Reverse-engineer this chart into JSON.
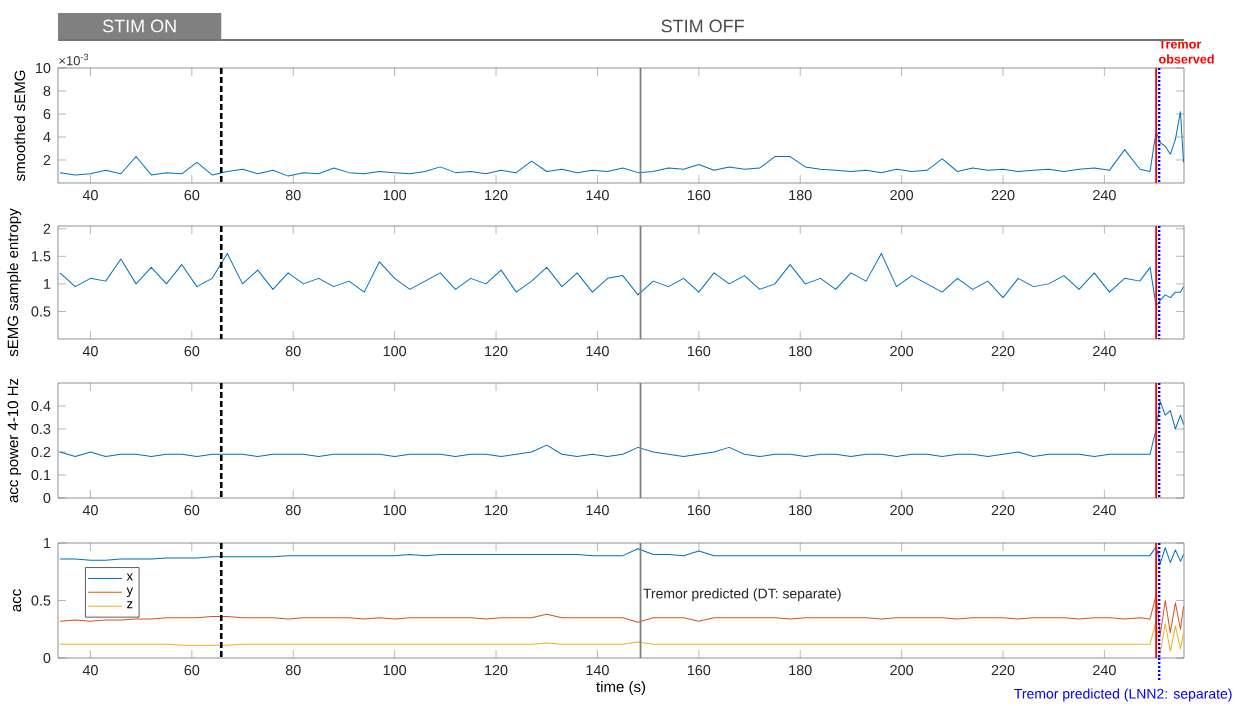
{
  "chart_data": [
    {
      "type": "line",
      "ylabel": "smoothed sEMG",
      "annotations": [
        "×10$^{-3}$",
        "STIM ON",
        "STIM OFF"
      ],
      "x": [
        34,
        37,
        40,
        43,
        46,
        49,
        52,
        55,
        58,
        61,
        64,
        67,
        70,
        73,
        76,
        79,
        82,
        85,
        88,
        91,
        94,
        97,
        100,
        103,
        106,
        109,
        112,
        115,
        118,
        121,
        124,
        127,
        130,
        133,
        136,
        139,
        142,
        145,
        148,
        151,
        154,
        157,
        160,
        163,
        166,
        169,
        172,
        175,
        178,
        181,
        184,
        187,
        190,
        193,
        196,
        199,
        202,
        205,
        208,
        211,
        214,
        217,
        220,
        223,
        226,
        229,
        232,
        235,
        238,
        241,
        244,
        247,
        249,
        250.2,
        251,
        252,
        253,
        254,
        255,
        255.6
      ],
      "series": [
        {
          "color": "#0072bd",
          "values": [
            0.9,
            0.7,
            0.8,
            1.1,
            0.8,
            2.3,
            0.7,
            0.9,
            0.8,
            1.8,
            0.7,
            1.0,
            1.2,
            0.8,
            1.1,
            0.6,
            0.9,
            0.8,
            1.3,
            0.9,
            0.8,
            1.0,
            0.9,
            0.8,
            1.0,
            1.4,
            0.9,
            1.0,
            0.8,
            1.1,
            0.9,
            1.9,
            1.0,
            1.2,
            0.9,
            1.1,
            1.0,
            1.3,
            0.9,
            1.0,
            1.3,
            1.2,
            1.6,
            1.1,
            1.4,
            1.2,
            1.3,
            2.3,
            2.3,
            1.4,
            1.2,
            1.1,
            1.0,
            1.1,
            0.9,
            1.2,
            1.0,
            1.1,
            2.1,
            1.0,
            1.3,
            1.1,
            1.2,
            1.0,
            1.1,
            1.2,
            1.0,
            1.2,
            1.3,
            1.1,
            2.9,
            1.2,
            1.0,
            4.5,
            3.5,
            3.2,
            2.5,
            3.8,
            6.2,
            1.8
          ]
        }
      ],
      "xlim": [
        33.6,
        255.7
      ],
      "ylim": [
        0,
        10
      ],
      "xticks": [
        40,
        60,
        80,
        100,
        120,
        140,
        160,
        180,
        200,
        220,
        240
      ],
      "yticks": [
        2,
        4,
        6,
        8,
        10
      ],
      "ref_lines": [
        {
          "axis": "x",
          "value": 65.8,
          "color": "#000000",
          "line_style": "dashed"
        },
        {
          "axis": "x",
          "value": 148.5,
          "color": "#808080",
          "line_style": "solid"
        },
        {
          "axis": "x",
          "value": 250.2,
          "color": "#ff0000",
          "line_style": "solid",
          "label": "Tremor observed"
        },
        {
          "axis": "x",
          "value": 250.8,
          "color": "#0000ff",
          "line_style": "dotted"
        }
      ]
    },
    {
      "type": "line",
      "ylabel": "sEMG sample entropy",
      "x": [
        34,
        37,
        40,
        43,
        46,
        49,
        52,
        55,
        58,
        61,
        64,
        67,
        70,
        73,
        76,
        79,
        82,
        85,
        88,
        91,
        94,
        97,
        100,
        103,
        106,
        109,
        112,
        115,
        118,
        121,
        124,
        127,
        130,
        133,
        136,
        139,
        142,
        145,
        148,
        151,
        154,
        157,
        160,
        163,
        166,
        169,
        172,
        175,
        178,
        181,
        184,
        187,
        190,
        193,
        196,
        199,
        202,
        205,
        208,
        211,
        214,
        217,
        220,
        223,
        226,
        229,
        232,
        235,
        238,
        241,
        244,
        247,
        249,
        250.2,
        251,
        252,
        253,
        254,
        255,
        255.6
      ],
      "series": [
        {
          "color": "#0072bd",
          "values": [
            1.2,
            0.95,
            1.1,
            1.05,
            1.45,
            1.0,
            1.3,
            1.0,
            1.35,
            0.95,
            1.1,
            1.55,
            1.0,
            1.25,
            0.9,
            1.2,
            1.0,
            1.1,
            0.95,
            1.05,
            0.85,
            1.4,
            1.1,
            0.9,
            1.05,
            1.2,
            0.9,
            1.1,
            1.0,
            1.25,
            0.85,
            1.05,
            1.3,
            0.95,
            1.2,
            0.85,
            1.1,
            1.15,
            0.8,
            1.05,
            0.95,
            1.1,
            0.85,
            1.2,
            1.0,
            1.15,
            0.9,
            1.0,
            1.35,
            1.0,
            1.1,
            0.9,
            1.2,
            1.05,
            1.55,
            0.95,
            1.15,
            1.0,
            0.85,
            1.1,
            0.9,
            1.05,
            0.75,
            1.1,
            0.95,
            1.0,
            1.15,
            0.9,
            1.2,
            0.85,
            1.1,
            1.05,
            1.3,
            0.6,
            0.7,
            0.8,
            0.75,
            0.85,
            0.85,
            0.95
          ]
        }
      ],
      "xlim": [
        33.6,
        255.7
      ],
      "ylim": [
        0,
        2.05
      ],
      "xticks": [
        40,
        60,
        80,
        100,
        120,
        140,
        160,
        180,
        200,
        220,
        240
      ],
      "yticks": [
        0.5,
        1,
        1.5,
        2
      ],
      "ref_lines": [
        {
          "axis": "x",
          "value": 65.8,
          "color": "#000000",
          "line_style": "dashed"
        },
        {
          "axis": "x",
          "value": 148.5,
          "color": "#808080",
          "line_style": "solid"
        },
        {
          "axis": "x",
          "value": 250.2,
          "color": "#ff0000",
          "line_style": "solid"
        },
        {
          "axis": "x",
          "value": 250.8,
          "color": "#0000ff",
          "line_style": "dotted"
        }
      ]
    },
    {
      "type": "line",
      "ylabel": "acc power 4-10 Hz",
      "x": [
        34,
        37,
        40,
        43,
        46,
        49,
        52,
        55,
        58,
        61,
        64,
        67,
        70,
        73,
        76,
        79,
        82,
        85,
        88,
        91,
        94,
        97,
        100,
        103,
        106,
        109,
        112,
        115,
        118,
        121,
        124,
        127,
        130,
        133,
        136,
        139,
        142,
        145,
        148,
        151,
        154,
        157,
        160,
        163,
        166,
        169,
        172,
        175,
        178,
        181,
        184,
        187,
        190,
        193,
        196,
        199,
        202,
        205,
        208,
        211,
        214,
        217,
        220,
        223,
        226,
        229,
        232,
        235,
        238,
        241,
        244,
        247,
        249,
        250.2,
        251,
        252,
        253,
        254,
        255,
        255.6
      ],
      "series": [
        {
          "color": "#0072bd",
          "values": [
            0.2,
            0.18,
            0.2,
            0.18,
            0.19,
            0.19,
            0.18,
            0.19,
            0.19,
            0.18,
            0.19,
            0.19,
            0.19,
            0.18,
            0.19,
            0.19,
            0.19,
            0.18,
            0.19,
            0.19,
            0.19,
            0.19,
            0.18,
            0.19,
            0.19,
            0.19,
            0.18,
            0.19,
            0.19,
            0.18,
            0.19,
            0.2,
            0.23,
            0.19,
            0.18,
            0.19,
            0.18,
            0.19,
            0.22,
            0.2,
            0.19,
            0.18,
            0.19,
            0.2,
            0.22,
            0.19,
            0.18,
            0.19,
            0.19,
            0.18,
            0.19,
            0.19,
            0.18,
            0.19,
            0.19,
            0.18,
            0.19,
            0.19,
            0.18,
            0.19,
            0.19,
            0.18,
            0.19,
            0.2,
            0.18,
            0.19,
            0.19,
            0.19,
            0.18,
            0.19,
            0.19,
            0.19,
            0.19,
            0.3,
            0.42,
            0.36,
            0.38,
            0.3,
            0.36,
            0.32
          ]
        }
      ],
      "xlim": [
        33.6,
        255.7
      ],
      "ylim": [
        0,
        0.5
      ],
      "xticks": [
        40,
        60,
        80,
        100,
        120,
        140,
        160,
        180,
        200,
        220,
        240
      ],
      "yticks": [
        0,
        0.1,
        0.2,
        0.3,
        0.4
      ],
      "ref_lines": [
        {
          "axis": "x",
          "value": 65.8,
          "color": "#000000",
          "line_style": "dashed"
        },
        {
          "axis": "x",
          "value": 148.5,
          "color": "#808080",
          "line_style": "solid"
        },
        {
          "axis": "x",
          "value": 250.2,
          "color": "#ff0000",
          "line_style": "solid"
        },
        {
          "axis": "x",
          "value": 250.8,
          "color": "#0000ff",
          "line_style": "dotted"
        }
      ]
    },
    {
      "type": "line",
      "ylabel": "acc",
      "xlabel": "time (s)",
      "legend": "top left",
      "x": [
        34,
        37,
        40,
        43,
        46,
        49,
        52,
        55,
        58,
        61,
        64,
        67,
        70,
        73,
        76,
        79,
        82,
        85,
        88,
        91,
        94,
        97,
        100,
        103,
        106,
        109,
        112,
        115,
        118,
        121,
        124,
        127,
        130,
        133,
        136,
        139,
        142,
        145,
        148,
        151,
        154,
        157,
        160,
        163,
        166,
        169,
        172,
        175,
        178,
        181,
        184,
        187,
        190,
        193,
        196,
        199,
        202,
        205,
        208,
        211,
        214,
        217,
        220,
        223,
        226,
        229,
        232,
        235,
        238,
        241,
        244,
        247,
        249,
        250.2,
        251,
        252,
        253,
        254,
        255,
        255.6
      ],
      "series": [
        {
          "name": "x",
          "color": "#0072bd",
          "values": [
            0.86,
            0.86,
            0.85,
            0.85,
            0.86,
            0.86,
            0.86,
            0.87,
            0.87,
            0.87,
            0.88,
            0.88,
            0.88,
            0.88,
            0.88,
            0.89,
            0.89,
            0.89,
            0.89,
            0.89,
            0.89,
            0.89,
            0.89,
            0.9,
            0.89,
            0.9,
            0.9,
            0.9,
            0.9,
            0.9,
            0.9,
            0.9,
            0.9,
            0.9,
            0.9,
            0.89,
            0.89,
            0.89,
            0.95,
            0.9,
            0.9,
            0.89,
            0.93,
            0.89,
            0.89,
            0.89,
            0.89,
            0.89,
            0.89,
            0.89,
            0.89,
            0.89,
            0.89,
            0.89,
            0.89,
            0.89,
            0.89,
            0.89,
            0.89,
            0.89,
            0.89,
            0.89,
            0.89,
            0.89,
            0.89,
            0.89,
            0.89,
            0.89,
            0.89,
            0.89,
            0.89,
            0.89,
            0.89,
            0.97,
            0.82,
            0.96,
            0.83,
            0.94,
            0.84,
            0.9
          ]
        },
        {
          "name": "y",
          "color": "#d95319",
          "values": [
            0.32,
            0.33,
            0.32,
            0.33,
            0.33,
            0.34,
            0.34,
            0.35,
            0.35,
            0.35,
            0.36,
            0.36,
            0.35,
            0.35,
            0.35,
            0.34,
            0.35,
            0.35,
            0.35,
            0.35,
            0.34,
            0.35,
            0.34,
            0.35,
            0.35,
            0.35,
            0.35,
            0.35,
            0.34,
            0.35,
            0.35,
            0.35,
            0.38,
            0.35,
            0.35,
            0.35,
            0.35,
            0.35,
            0.31,
            0.35,
            0.35,
            0.35,
            0.32,
            0.35,
            0.35,
            0.35,
            0.35,
            0.35,
            0.34,
            0.35,
            0.35,
            0.35,
            0.35,
            0.35,
            0.34,
            0.35,
            0.35,
            0.35,
            0.35,
            0.34,
            0.35,
            0.35,
            0.35,
            0.34,
            0.35,
            0.35,
            0.35,
            0.34,
            0.35,
            0.35,
            0.34,
            0.35,
            0.34,
            0.55,
            0.2,
            0.5,
            0.22,
            0.48,
            0.25,
            0.45
          ]
        },
        {
          "name": "z",
          "color": "#edb120",
          "values": [
            0.12,
            0.12,
            0.12,
            0.12,
            0.12,
            0.12,
            0.12,
            0.12,
            0.11,
            0.11,
            0.11,
            0.11,
            0.12,
            0.12,
            0.12,
            0.12,
            0.12,
            0.12,
            0.12,
            0.12,
            0.12,
            0.12,
            0.12,
            0.12,
            0.12,
            0.12,
            0.12,
            0.12,
            0.12,
            0.12,
            0.12,
            0.12,
            0.13,
            0.12,
            0.12,
            0.12,
            0.12,
            0.12,
            0.14,
            0.12,
            0.12,
            0.12,
            0.12,
            0.12,
            0.12,
            0.12,
            0.12,
            0.12,
            0.12,
            0.12,
            0.12,
            0.12,
            0.12,
            0.12,
            0.12,
            0.12,
            0.12,
            0.12,
            0.12,
            0.12,
            0.12,
            0.12,
            0.12,
            0.12,
            0.12,
            0.12,
            0.12,
            0.12,
            0.12,
            0.12,
            0.12,
            0.12,
            0.12,
            0.32,
            0.04,
            0.3,
            0.06,
            0.28,
            0.08,
            0.22
          ]
        }
      ],
      "xlim": [
        33.6,
        255.7
      ],
      "ylim": [
        0,
        1
      ],
      "xticks": [
        40,
        60,
        80,
        100,
        120,
        140,
        160,
        180,
        200,
        220,
        240
      ],
      "yticks": [
        0,
        0.5,
        1
      ],
      "ref_lines": [
        {
          "axis": "x",
          "value": 65.8,
          "color": "#000000",
          "line_style": "dashed"
        },
        {
          "axis": "x",
          "value": 148.5,
          "color": "#808080",
          "line_style": "solid",
          "label": "Tremor predicted (DT: separate)"
        },
        {
          "axis": "x",
          "value": 250.2,
          "color": "#ff0000",
          "line_style": "solid"
        },
        {
          "axis": "x",
          "value": 250.8,
          "color": "#0000ff",
          "line_style": "dotted",
          "label": "Tremor predicted (LNN2: separate)"
        }
      ]
    }
  ]
}
